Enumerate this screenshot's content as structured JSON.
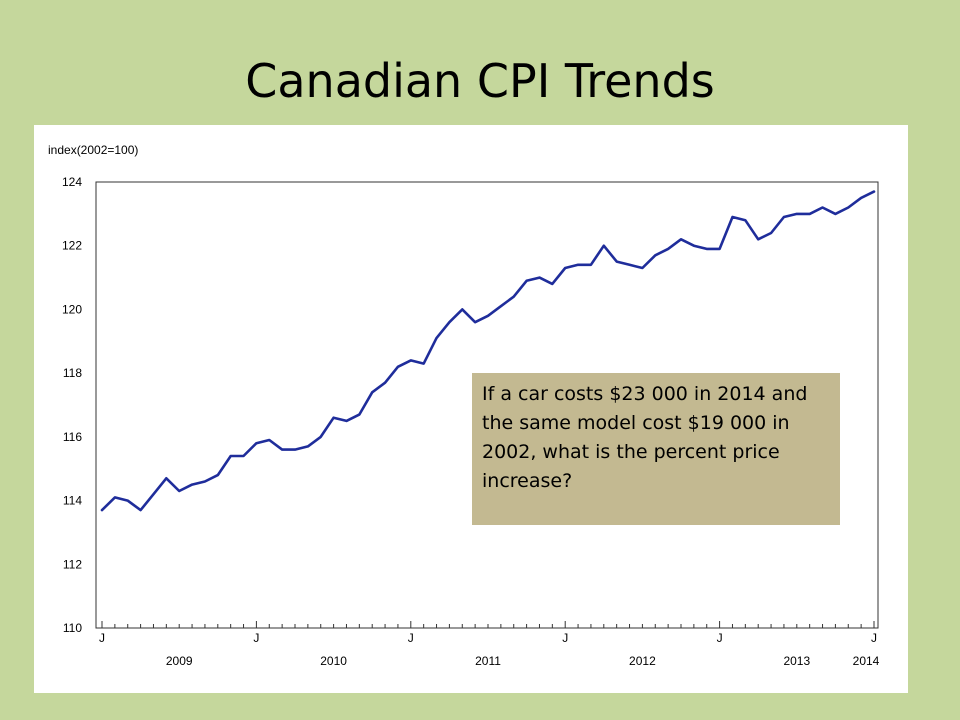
{
  "slide": {
    "title": "Canadian CPI Trends",
    "question": "If a car costs $23 000 in 2014 and the same model cost $19 000 in 2002, what is the percent price increase?"
  },
  "chart_data": {
    "type": "line",
    "ylabel": "index(2002=100)",
    "ylim": [
      110,
      124
    ],
    "yticks": [
      110,
      112,
      114,
      116,
      118,
      120,
      122,
      124
    ],
    "x_start": "2009-01",
    "x_end": "2014-01",
    "month_tick_label": "J",
    "year_labels": [
      "2009",
      "2010",
      "2011",
      "2012",
      "2013",
      "2014"
    ],
    "grid": false,
    "legend": "none",
    "line_color": "#1f2d9b",
    "series": [
      {
        "values": [
          113.7,
          114.1,
          114.0,
          113.7,
          114.2,
          114.7,
          114.3,
          114.5,
          114.6,
          114.8,
          115.4,
          115.4,
          115.8,
          115.9,
          115.6,
          115.6,
          115.7,
          116.0,
          116.6,
          116.5,
          116.7,
          117.4,
          117.7,
          118.2,
          118.4,
          118.3,
          119.1,
          119.6,
          120.0,
          119.6,
          119.8,
          120.1,
          120.4,
          120.9,
          121.0,
          120.8,
          121.3,
          121.4,
          121.4,
          122.0,
          121.5,
          121.4,
          121.3,
          121.7,
          121.9,
          122.2,
          122.0,
          121.9,
          121.9,
          122.9,
          122.8,
          122.2,
          122.4,
          122.9,
          123.0,
          123.0,
          123.2,
          123.0,
          123.2,
          123.5,
          123.7
        ]
      }
    ]
  }
}
